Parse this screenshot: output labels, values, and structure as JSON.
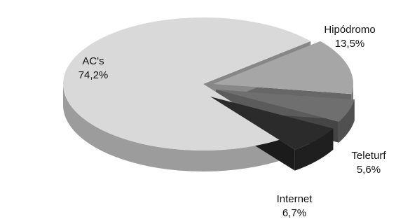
{
  "chart_data": {
    "type": "pie",
    "style": "3d-exploded",
    "categories": [
      "AC's",
      "Hipódromo",
      "Teleturf",
      "Internet"
    ],
    "values": [
      74.2,
      13.5,
      5.6,
      6.7
    ],
    "value_labels": [
      "74,2%",
      "13,5%",
      "5,6%",
      "6,7%"
    ],
    "colors": {
      "AC's": "#d9d9d9",
      "Hipódromo": "#a6a6a6",
      "Teleturf": "#6f6f6f",
      "Internet": "#2b2b2b"
    },
    "title": "",
    "legend": "none"
  }
}
